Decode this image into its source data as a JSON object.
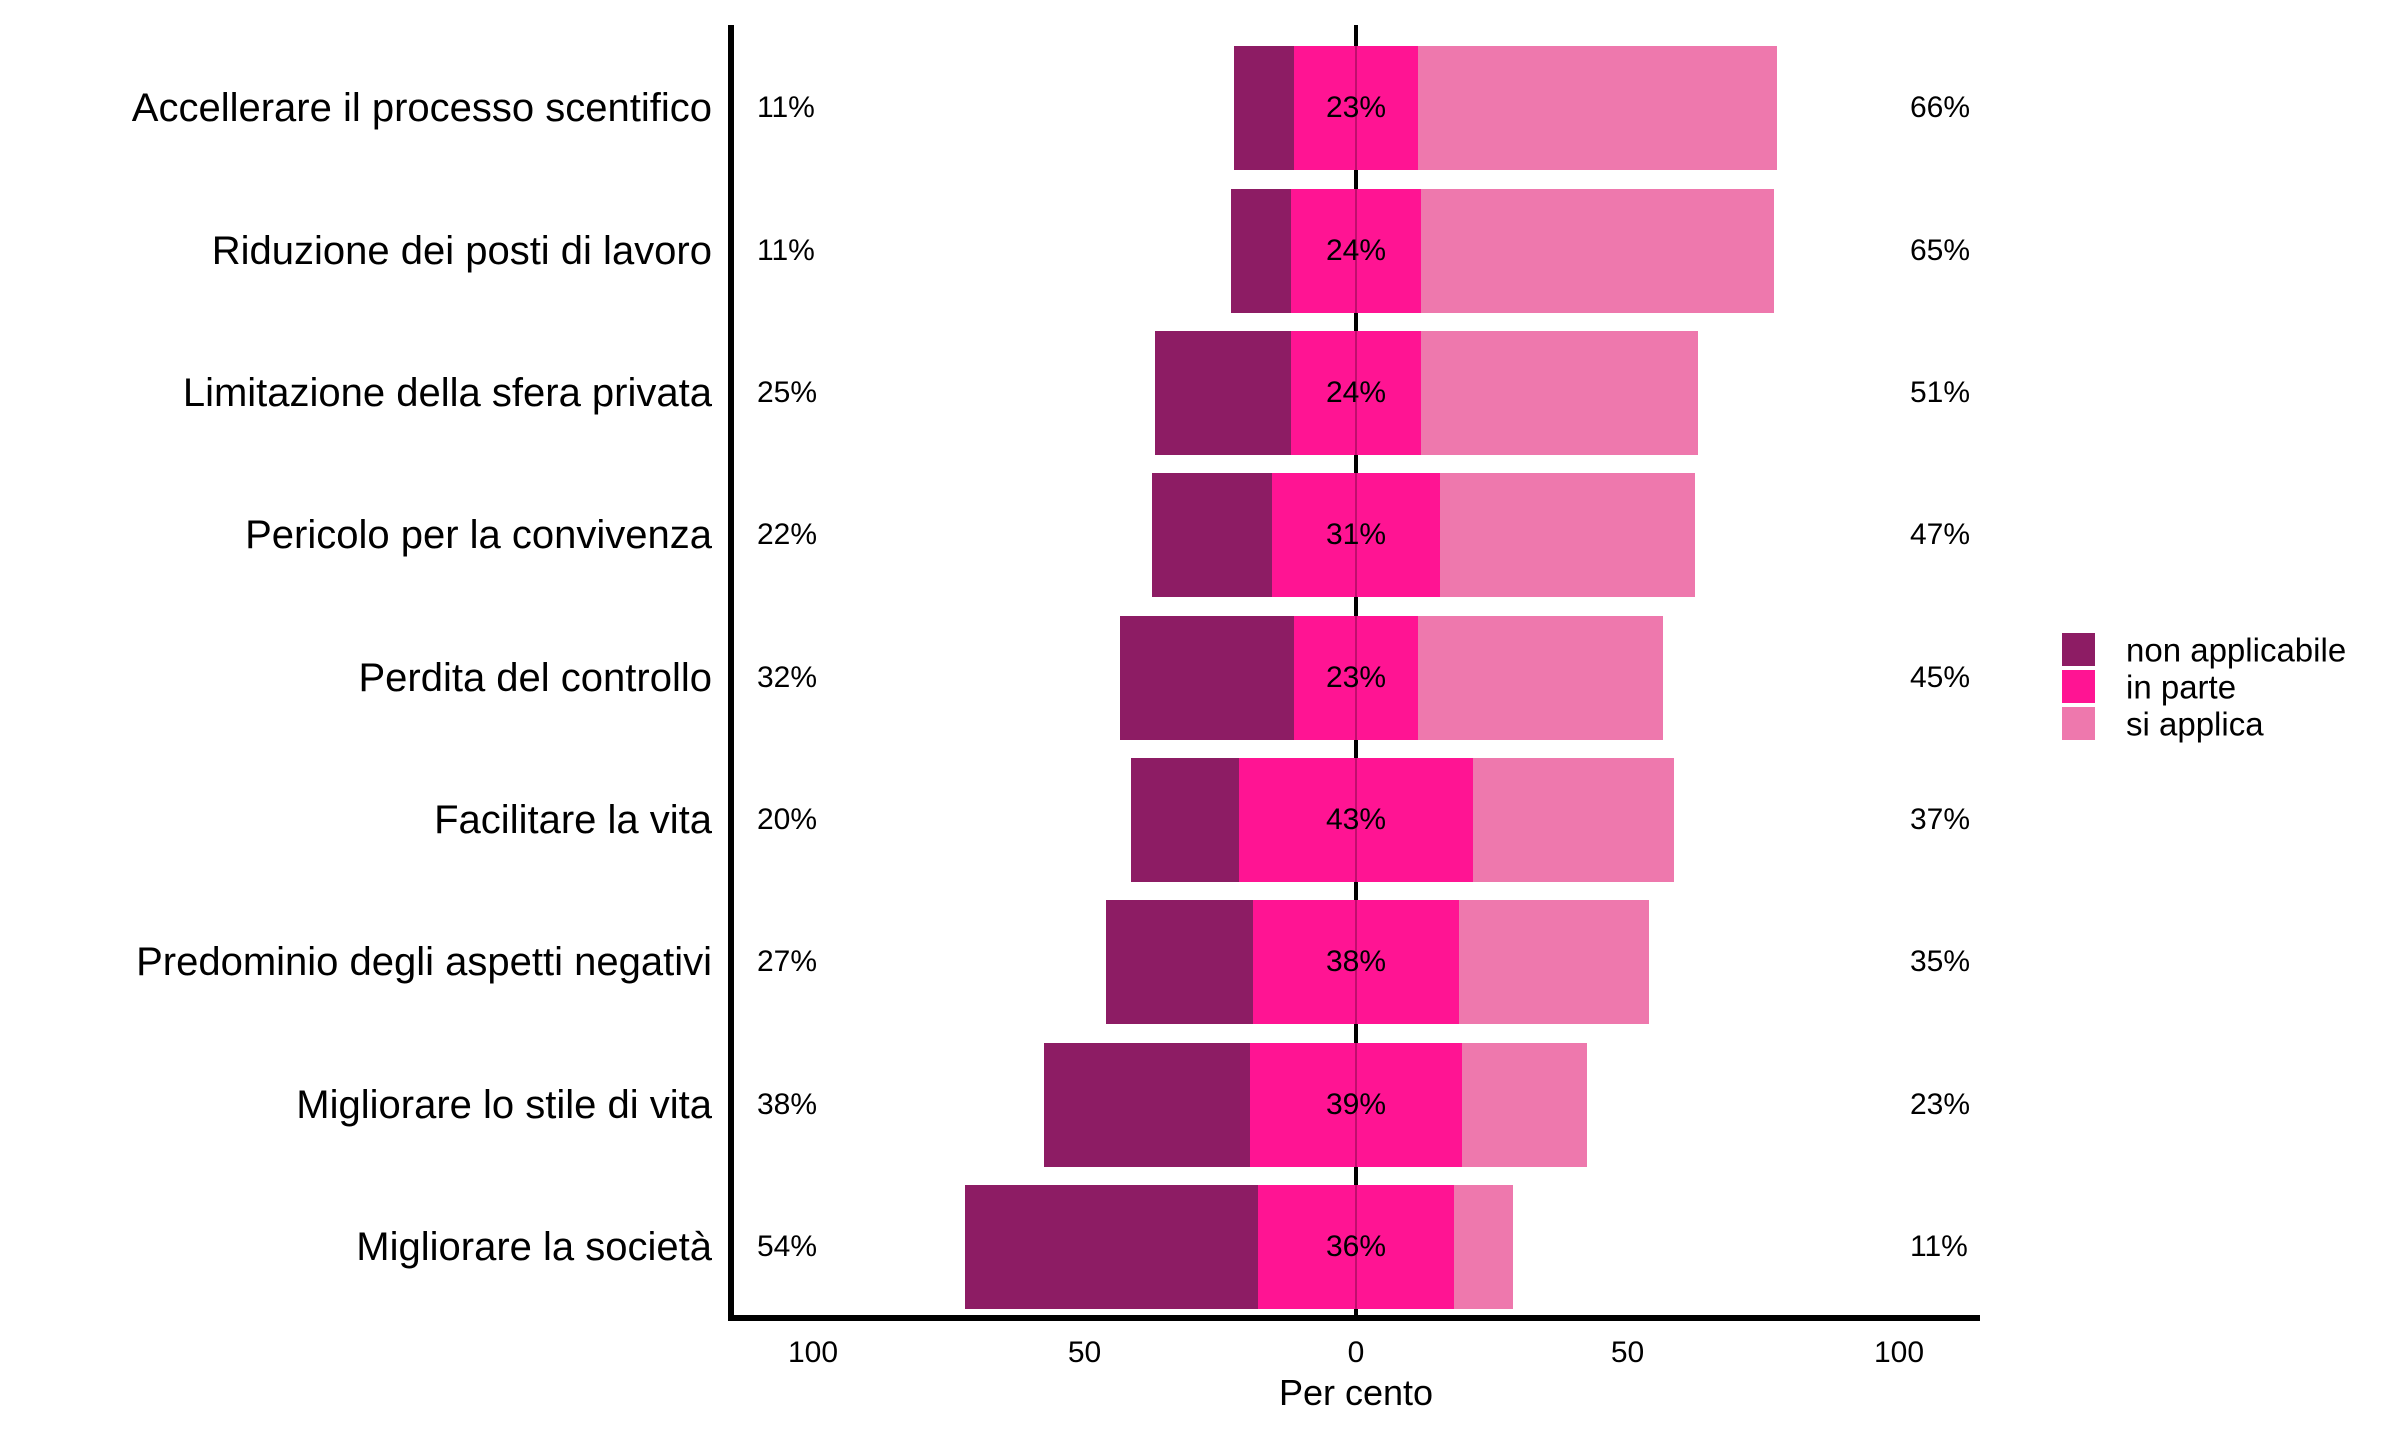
{
  "chart_data": {
    "type": "bar",
    "variant": "horizontal-diverging-stacked",
    "title": "",
    "xlabel": "Per cento",
    "x_range": [
      -115,
      115
    ],
    "grid": false,
    "centering": "middle series centered on zero",
    "categories": [
      "Accellerare il processo scentifico",
      "Riduzione dei posti di lavoro",
      "Limitazione della sfera privata",
      "Pericolo per la convivenza",
      "Perdita del controllo",
      "Facilitare la vita",
      "Predominio degli aspetti negativi",
      "Migliorare lo stile di vita",
      "Migliorare la società"
    ],
    "series": [
      {
        "name": "non applicabile",
        "color": "#8D1C64",
        "values": [
          11,
          11,
          25,
          22,
          32,
          20,
          27,
          38,
          54
        ]
      },
      {
        "name": "in parte",
        "color": "#FF1493",
        "values": [
          23,
          24,
          24,
          31,
          23,
          43,
          38,
          39,
          36
        ]
      },
      {
        "name": "si applica",
        "color": "#EE78AD",
        "values": [
          66,
          65,
          51,
          47,
          45,
          37,
          35,
          23,
          11
        ]
      }
    ],
    "row_labels": {
      "left": [
        "11%",
        "11%",
        "25%",
        "22%",
        "32%",
        "20%",
        "27%",
        "38%",
        "54%"
      ],
      "center": [
        "23%",
        "24%",
        "24%",
        "31%",
        "23%",
        "43%",
        "38%",
        "39%",
        "36%"
      ],
      "right": [
        "66%",
        "65%",
        "51%",
        "47%",
        "45%",
        "37%",
        "35%",
        "23%",
        "11%"
      ]
    },
    "x_ticks": [
      {
        "value": -100,
        "label": "100"
      },
      {
        "value": -50,
        "label": "50"
      },
      {
        "value": 0,
        "label": "0"
      },
      {
        "value": 50,
        "label": "50"
      },
      {
        "value": 100,
        "label": "100"
      }
    ],
    "legend": {
      "position": "right",
      "entries": [
        {
          "label": "non applicabile",
          "color": "#8D1C64"
        },
        {
          "label": "in parte",
          "color": "#FF1493"
        },
        {
          "label": "si applica",
          "color": "#EE78AD"
        }
      ]
    },
    "colors": {
      "axis": "#000000",
      "background": "#ffffff",
      "text": "#000000"
    }
  }
}
